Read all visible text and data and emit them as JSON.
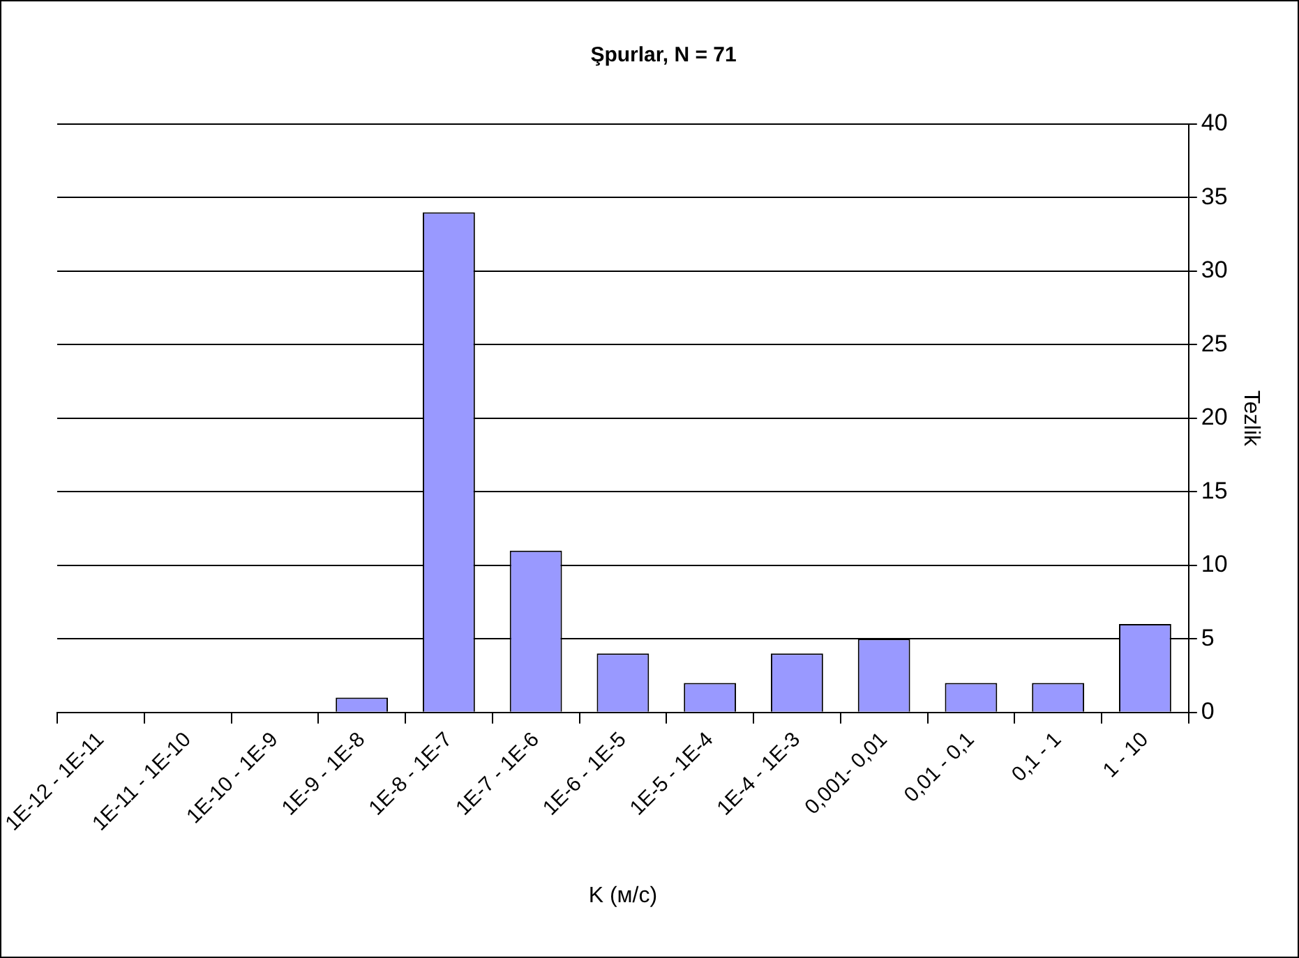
{
  "chart_data": {
    "type": "bar",
    "title": "Şpurlar, N = 71",
    "xlabel": "K (м/с)",
    "ylabel": "Tezlik",
    "categories": [
      "1E-12 - 1E-11",
      "1E-11 - 1E-10",
      "1E-10 - 1E-9",
      "1E-9 - 1E-8",
      "1E-8 - 1E-7",
      "1E-7 - 1E-6",
      "1E-6 - 1E-5",
      "1E-5 - 1E-4",
      "1E-4 - 1E-3",
      "0,001- 0,01",
      "0,01 - 0,1",
      "0,1 - 1",
      "1 - 10"
    ],
    "values": [
      0,
      0,
      0,
      1,
      34,
      11,
      4,
      2,
      4,
      5,
      2,
      2,
      6
    ],
    "color": "#9999ff",
    "ylim": [
      0,
      40
    ],
    "yticks": [
      0,
      5,
      10,
      15,
      20,
      25,
      30,
      35,
      40
    ],
    "grid": "y",
    "legend": false
  }
}
